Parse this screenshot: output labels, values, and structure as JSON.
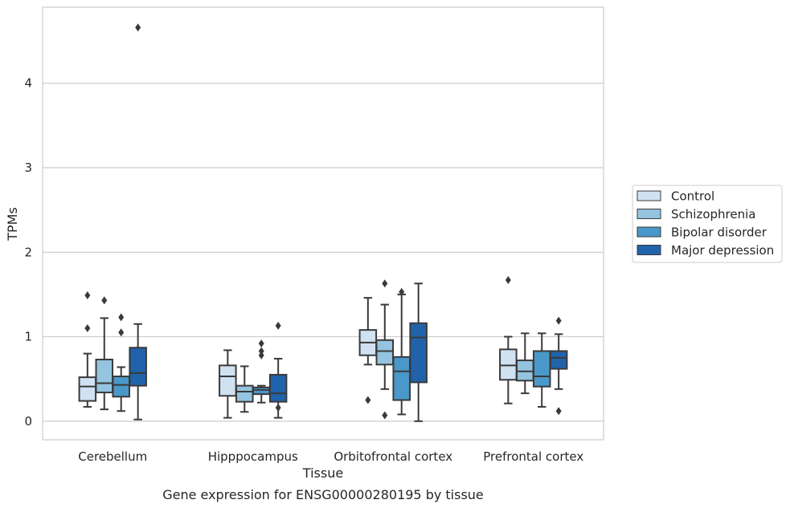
{
  "chart_data": {
    "type": "box",
    "title": "",
    "caption": "Gene expression for ENSG00000280195 by tissue",
    "xlabel": "Tissue",
    "ylabel": "TPMs",
    "ylim": [
      -0.22,
      4.9
    ],
    "yticks": [
      0,
      1,
      2,
      3,
      4
    ],
    "grid": "horizontal",
    "legend_position": "right",
    "categories": [
      "Cerebellum",
      "Hipppocampus",
      "Orbitofrontal cortex",
      "Prefrontal cortex"
    ],
    "series": [
      {
        "name": "Control",
        "color": "#d0e1f2",
        "boxes": [
          {
            "whisker_low": 0.17,
            "q1": 0.24,
            "median": 0.41,
            "q3": 0.52,
            "whisker_high": 0.8,
            "outliers": [
              1.1,
              1.49
            ]
          },
          {
            "whisker_low": 0.04,
            "q1": 0.3,
            "median": 0.53,
            "q3": 0.66,
            "whisker_high": 0.84,
            "outliers": []
          },
          {
            "whisker_low": 0.67,
            "q1": 0.78,
            "median": 0.93,
            "q3": 1.08,
            "whisker_high": 1.46,
            "outliers": [
              0.25
            ]
          },
          {
            "whisker_low": 0.21,
            "q1": 0.49,
            "median": 0.66,
            "q3": 0.85,
            "whisker_high": 1.0,
            "outliers": [
              1.67
            ]
          }
        ]
      },
      {
        "name": "Schizophrenia",
        "color": "#94c4df",
        "boxes": [
          {
            "whisker_low": 0.14,
            "q1": 0.34,
            "median": 0.45,
            "q3": 0.73,
            "whisker_high": 1.22,
            "outliers": [
              1.43
            ]
          },
          {
            "whisker_low": 0.11,
            "q1": 0.23,
            "median": 0.35,
            "q3": 0.42,
            "whisker_high": 0.65,
            "outliers": []
          },
          {
            "whisker_low": 0.38,
            "q1": 0.67,
            "median": 0.83,
            "q3": 0.96,
            "whisker_high": 1.38,
            "outliers": [
              0.07,
              1.63
            ]
          },
          {
            "whisker_low": 0.33,
            "q1": 0.48,
            "median": 0.59,
            "q3": 0.72,
            "whisker_high": 1.04,
            "outliers": []
          }
        ]
      },
      {
        "name": "Bipolar disorder",
        "color": "#4a98c9",
        "boxes": [
          {
            "whisker_low": 0.12,
            "q1": 0.29,
            "median": 0.43,
            "q3": 0.53,
            "whisker_high": 0.64,
            "outliers": [
              1.05,
              1.23
            ]
          },
          {
            "whisker_low": 0.22,
            "q1": 0.32,
            "median": 0.37,
            "q3": 0.4,
            "whisker_high": 0.42,
            "outliers": [
              0.78,
              0.83,
              0.92
            ]
          },
          {
            "whisker_low": 0.08,
            "q1": 0.25,
            "median": 0.59,
            "q3": 0.76,
            "whisker_high": 1.5,
            "outliers": [
              1.53
            ]
          },
          {
            "whisker_low": 0.17,
            "q1": 0.41,
            "median": 0.53,
            "q3": 0.83,
            "whisker_high": 1.04,
            "outliers": []
          }
        ]
      },
      {
        "name": "Major depression",
        "color": "#2163aa",
        "boxes": [
          {
            "whisker_low": 0.02,
            "q1": 0.42,
            "median": 0.57,
            "q3": 0.87,
            "whisker_high": 1.15,
            "outliers": [
              4.66
            ]
          },
          {
            "whisker_low": 0.04,
            "q1": 0.23,
            "median": 0.33,
            "q3": 0.55,
            "whisker_high": 0.74,
            "outliers": [
              0.16,
              1.13
            ]
          },
          {
            "whisker_low": 0.0,
            "q1": 0.46,
            "median": 0.99,
            "q3": 1.16,
            "whisker_high": 1.63,
            "outliers": []
          },
          {
            "whisker_low": 0.38,
            "q1": 0.62,
            "median": 0.75,
            "q3": 0.83,
            "whisker_high": 1.03,
            "outliers": [
              0.12,
              1.19
            ]
          }
        ]
      }
    ]
  }
}
